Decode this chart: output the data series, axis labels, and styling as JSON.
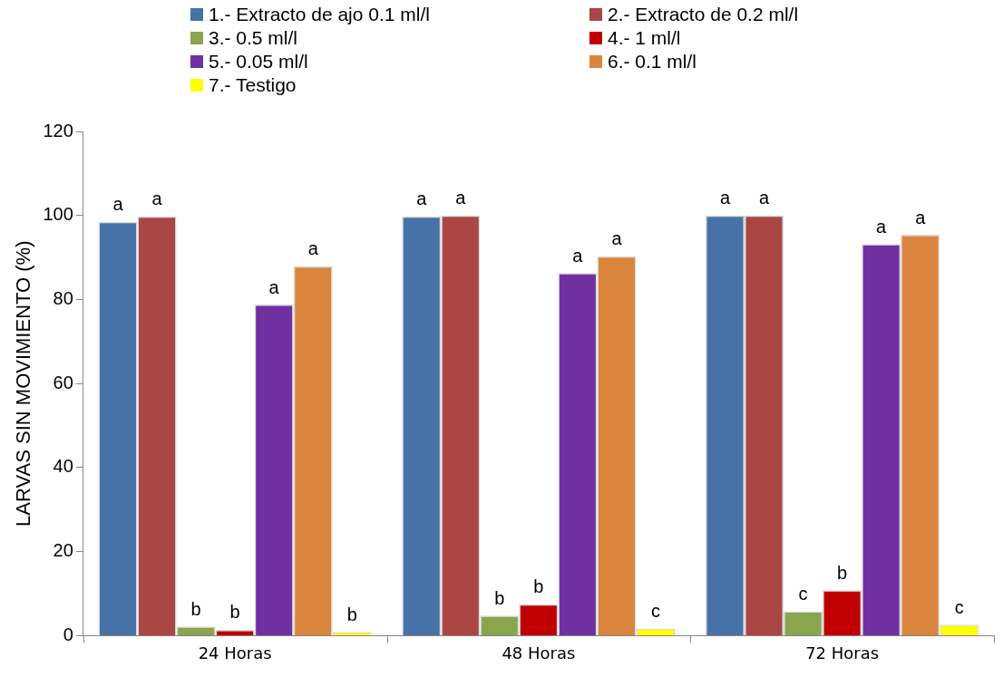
{
  "chart_data": {
    "type": "bar",
    "ylabel": "LARVAS SIN MOVIMIENTO (%)",
    "categories": [
      "24 Horas",
      "48 Horas",
      "72 Horas"
    ],
    "series": [
      {
        "name": "1.- Extracto de ajo 0.1 ml/l",
        "color": "#4672a8",
        "values": [
          98.5,
          99.8,
          100
        ],
        "value_labels": [
          "a",
          "a",
          "a"
        ]
      },
      {
        "name": "2.- Extracto de 0.2 ml/l",
        "color": "#aa4644",
        "values": [
          99.8,
          100,
          100
        ],
        "value_labels": [
          "a",
          "a",
          "a"
        ]
      },
      {
        "name": "3.- 0.5 ml/l",
        "color": "#89a54e",
        "values": [
          2.2,
          4.8,
          5.8
        ],
        "value_labels": [
          "b",
          "b",
          "c"
        ]
      },
      {
        "name": "4.- 1 ml/l",
        "color": "#c00000",
        "values": [
          1.4,
          7.5,
          10.8
        ],
        "value_labels": [
          "b",
          "b",
          "b"
        ]
      },
      {
        "name": "5.- 0.05 ml/l",
        "color": "#7030a0",
        "values": [
          78.8,
          86.3,
          93.2
        ],
        "value_labels": [
          "a",
          "a",
          "a"
        ]
      },
      {
        "name": "6.- 0.1 ml/l",
        "color": "#db843d",
        "values": [
          87.9,
          90.3,
          95.4
        ],
        "value_labels": [
          "a",
          "a",
          "a"
        ]
      },
      {
        "name": "7.- Testigo",
        "color": "#ffff00",
        "values": [
          0.9,
          1.7,
          2.6
        ],
        "value_labels": [
          "b",
          "c",
          "c"
        ]
      }
    ],
    "ylim": [
      0,
      120
    ],
    "yticks": [
      0,
      20,
      40,
      60,
      80,
      100,
      120
    ],
    "grid": false,
    "legend": "top"
  }
}
